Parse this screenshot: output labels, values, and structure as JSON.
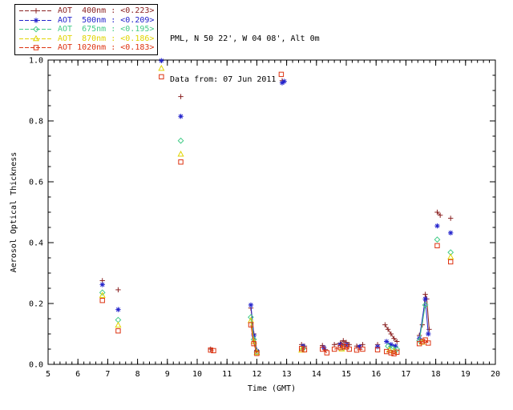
{
  "header": {
    "station": "PML, N 50 22', W 04 08', Alt 0m",
    "date_line": "Data from: 07 Jun 2011"
  },
  "chart_data": {
    "type": "scatter",
    "title": "",
    "xlabel": "Time (GMT)",
    "ylabel": "Aerosol Optical Thickness",
    "xlim": [
      5,
      20
    ],
    "ylim": [
      0.0,
      1.0
    ],
    "xticks": [
      5,
      6,
      7,
      8,
      9,
      10,
      11,
      12,
      13,
      14,
      15,
      16,
      17,
      18,
      19,
      20
    ],
    "xtick_labels": [
      "5",
      "6",
      "7",
      "8",
      "9",
      "10",
      "11",
      "12",
      "13",
      "14",
      "15",
      "16",
      "17",
      "18",
      "19",
      "20"
    ],
    "yticks": [
      0.0,
      0.2,
      0.4,
      0.6,
      0.8,
      1.0
    ],
    "ytick_labels": [
      "0.0",
      "0.2",
      "0.4",
      "0.6",
      "0.8",
      "1.0"
    ],
    "x_minor_step": 0.2,
    "y_minor_step": 0.05,
    "grid": false,
    "legend_position": "top-left",
    "connect_max_dt": 0.21,
    "series": [
      {
        "id": "aot-400nm",
        "name": "AOT 400nm",
        "legend_text": "AOT  400nm : <0.223>",
        "mean": 0.223,
        "color": "#8B2323",
        "marker": "plus",
        "points": [
          [
            6.82,
            0.275
          ],
          [
            7.35,
            0.245
          ],
          [
            9.45,
            0.88
          ],
          [
            10.45,
            0.05
          ],
          [
            11.8,
            0.185
          ],
          [
            11.9,
            0.1
          ],
          [
            12.0,
            0.046
          ],
          [
            12.85,
            0.932
          ],
          [
            13.5,
            0.065
          ],
          [
            13.6,
            0.06
          ],
          [
            14.2,
            0.062
          ],
          [
            14.3,
            0.048
          ],
          [
            14.6,
            0.065
          ],
          [
            14.8,
            0.07
          ],
          [
            14.9,
            0.078
          ],
          [
            15.0,
            0.072
          ],
          [
            15.1,
            0.065
          ],
          [
            15.35,
            0.06
          ],
          [
            15.55,
            0.065
          ],
          [
            16.05,
            0.065
          ],
          [
            16.3,
            0.13
          ],
          [
            16.4,
            0.115
          ],
          [
            16.5,
            0.1
          ],
          [
            16.6,
            0.085
          ],
          [
            16.7,
            0.075
          ],
          [
            17.45,
            0.095
          ],
          [
            17.55,
            0.13
          ],
          [
            17.65,
            0.23
          ],
          [
            17.7,
            0.215
          ],
          [
            17.78,
            0.115
          ],
          [
            18.05,
            0.5
          ],
          [
            18.15,
            0.49
          ],
          [
            18.5,
            0.48
          ]
        ]
      },
      {
        "id": "aot-500nm",
        "name": "AOT 500nm",
        "legend_text": "AOT  500nm : <0.209>",
        "mean": 0.209,
        "color": "#2323CC",
        "marker": "asterisk",
        "points": [
          [
            6.82,
            0.262
          ],
          [
            7.35,
            0.18
          ],
          [
            8.8,
            0.998
          ],
          [
            9.45,
            0.815
          ],
          [
            11.8,
            0.195
          ],
          [
            11.9,
            0.095
          ],
          [
            12.0,
            0.044
          ],
          [
            12.85,
            0.925
          ],
          [
            12.92,
            0.93
          ],
          [
            13.55,
            0.06
          ],
          [
            14.25,
            0.055
          ],
          [
            14.8,
            0.065
          ],
          [
            15.0,
            0.064
          ],
          [
            15.45,
            0.058
          ],
          [
            16.05,
            0.058
          ],
          [
            16.35,
            0.075
          ],
          [
            16.5,
            0.065
          ],
          [
            16.65,
            0.06
          ],
          [
            17.45,
            0.085
          ],
          [
            17.65,
            0.215
          ],
          [
            17.75,
            0.1
          ],
          [
            18.05,
            0.455
          ],
          [
            18.5,
            0.432
          ]
        ]
      },
      {
        "id": "aot-675nm",
        "name": "AOT 675nm",
        "legend_text": "AOT  675nm : <0.195>",
        "mean": 0.195,
        "color": "#44CC88",
        "marker": "diamond",
        "points": [
          [
            6.82,
            0.236
          ],
          [
            7.35,
            0.146
          ],
          [
            9.45,
            0.735
          ],
          [
            11.8,
            0.155
          ],
          [
            11.9,
            0.082
          ],
          [
            12.0,
            0.04
          ],
          [
            13.55,
            0.052
          ],
          [
            14.9,
            0.055
          ],
          [
            16.4,
            0.06
          ],
          [
            16.55,
            0.052
          ],
          [
            16.7,
            0.05
          ],
          [
            17.45,
            0.078
          ],
          [
            17.65,
            0.195
          ],
          [
            18.05,
            0.41
          ],
          [
            18.5,
            0.368
          ]
        ]
      },
      {
        "id": "aot-870nm",
        "name": "AOT 870nm",
        "legend_text": "AOT  870nm : <0.186>",
        "mean": 0.186,
        "color": "#E0D400",
        "marker": "triangle",
        "points": [
          [
            6.82,
            0.226
          ],
          [
            7.35,
            0.128
          ],
          [
            8.8,
            0.972
          ],
          [
            9.45,
            0.69
          ],
          [
            11.8,
            0.143
          ],
          [
            11.9,
            0.075
          ],
          [
            12.0,
            0.038
          ],
          [
            13.5,
            0.046
          ],
          [
            14.85,
            0.05
          ],
          [
            16.45,
            0.046
          ],
          [
            16.6,
            0.042
          ],
          [
            17.55,
            0.072
          ],
          [
            18.5,
            0.352
          ]
        ]
      },
      {
        "id": "aot-1020nm",
        "name": "AOT 1020nm",
        "legend_text": "AOT 1020nm : <0.183>",
        "mean": 0.183,
        "color": "#DD3311",
        "marker": "square",
        "points": [
          [
            6.82,
            0.21
          ],
          [
            7.35,
            0.11
          ],
          [
            8.8,
            0.945
          ],
          [
            9.45,
            0.665
          ],
          [
            10.45,
            0.047
          ],
          [
            10.55,
            0.045
          ],
          [
            11.8,
            0.13
          ],
          [
            11.9,
            0.068
          ],
          [
            12.0,
            0.036
          ],
          [
            12.82,
            0.953
          ],
          [
            13.5,
            0.052
          ],
          [
            13.6,
            0.048
          ],
          [
            14.2,
            0.05
          ],
          [
            14.35,
            0.038
          ],
          [
            14.6,
            0.05
          ],
          [
            14.8,
            0.055
          ],
          [
            14.9,
            0.06
          ],
          [
            15.0,
            0.057
          ],
          [
            15.1,
            0.05
          ],
          [
            15.35,
            0.047
          ],
          [
            15.55,
            0.05
          ],
          [
            16.05,
            0.048
          ],
          [
            16.35,
            0.042
          ],
          [
            16.5,
            0.038
          ],
          [
            16.6,
            0.035
          ],
          [
            16.7,
            0.04
          ],
          [
            17.45,
            0.068
          ],
          [
            17.55,
            0.075
          ],
          [
            17.65,
            0.08
          ],
          [
            17.75,
            0.07
          ],
          [
            18.05,
            0.39
          ],
          [
            18.5,
            0.337
          ]
        ]
      }
    ]
  }
}
